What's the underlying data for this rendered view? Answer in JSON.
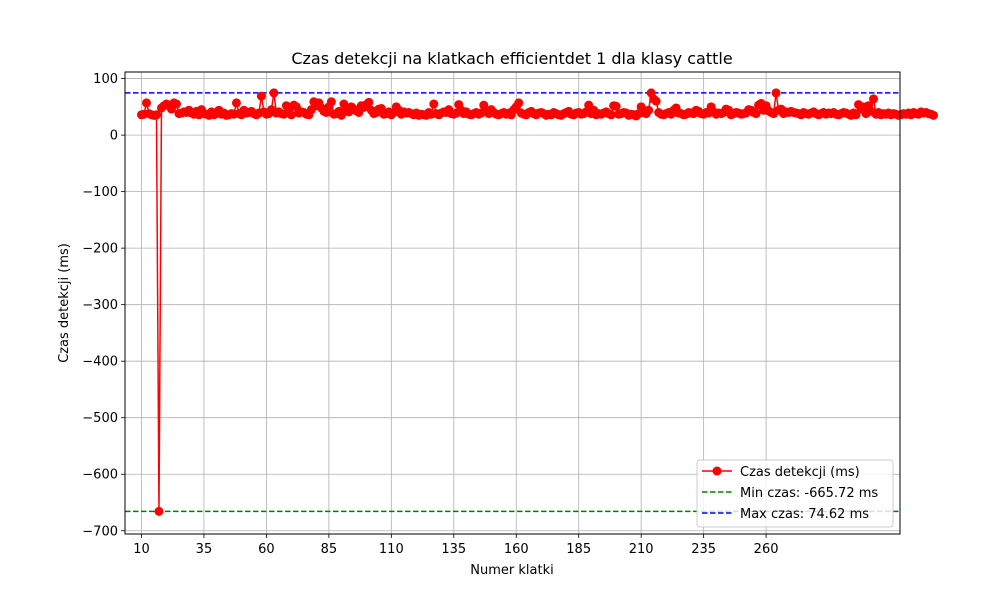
{
  "chart_data": {
    "type": "line",
    "title": "Czas detekcji na klatkach efficientdet 1 dla klasy cattle",
    "xlabel": "Numer klatki",
    "ylabel": "Czas detekcji (ms)",
    "xlim": [
      3.4,
      313.6
    ],
    "ylim": [
      -705.75,
      111.65
    ],
    "x_ticks": [
      10,
      35,
      60,
      85,
      110,
      135,
      160,
      185,
      210,
      235,
      260
    ],
    "y_ticks": [
      100,
      0,
      -100,
      -200,
      -300,
      -400,
      -500,
      -600,
      -700
    ],
    "y_tick_labels": [
      "100",
      "0",
      "−100",
      "−200",
      "−300",
      "−400",
      "−500",
      "−600",
      "−700"
    ],
    "grid": true,
    "legend_position": "lower right",
    "colors": {
      "series": "#ff0000",
      "min_line": "#008000",
      "max_line": "#0000ff",
      "grid": "#b0b0b0"
    },
    "series": [
      {
        "name": "Czas detekcji (ms)",
        "x_start": 10,
        "values": [
          36,
          37,
          57,
          38,
          36,
          35,
          36,
          -665.72,
          48,
          52,
          55,
          52,
          46,
          57,
          55,
          38,
          39,
          41,
          40,
          44,
          39,
          37,
          42,
          36,
          45,
          38,
          37,
          35,
          41,
          36,
          38,
          44,
          37,
          39,
          35,
          36,
          38,
          37,
          57,
          38,
          36,
          44,
          39,
          40,
          42,
          38,
          36,
          39,
          69,
          41,
          37,
          38,
          45,
          74.62,
          39,
          41,
          38,
          37,
          52,
          49,
          36,
          53,
          50,
          39,
          41,
          40,
          37,
          36,
          45,
          59,
          52,
          57,
          48,
          42,
          40,
          50,
          59,
          37,
          38,
          42,
          35,
          55,
          47,
          41,
          50,
          46,
          43,
          40,
          52,
          49,
          54,
          58,
          44,
          38,
          40,
          46,
          47,
          37,
          38,
          41,
          36,
          40,
          50,
          44,
          37,
          41,
          39,
          40,
          38,
          36,
          39,
          35,
          37,
          36,
          35,
          40,
          37,
          55,
          38,
          36,
          39,
          41,
          40,
          45,
          38,
          37,
          39,
          54,
          44,
          38,
          41,
          37,
          36,
          38,
          40,
          37,
          39,
          53,
          44,
          38,
          45,
          40,
          37,
          36,
          38,
          40,
          37,
          39,
          36,
          45,
          50,
          57,
          39,
          37,
          36,
          40,
          42,
          38,
          36,
          39,
          40,
          38,
          35,
          37,
          36,
          40,
          38,
          36,
          35,
          38,
          40,
          42,
          37,
          36,
          39,
          40,
          37,
          38,
          41,
          53,
          38,
          44,
          36,
          38,
          37,
          39,
          41,
          38,
          36,
          52,
          51,
          37,
          38,
          40,
          39,
          35,
          37,
          36,
          34,
          38,
          50,
          40,
          38,
          44,
          74.62,
          64,
          60,
          40,
          37,
          36,
          38,
          40,
          37,
          44,
          48,
          39,
          38,
          36,
          37,
          40,
          39,
          38,
          44,
          42,
          38,
          37,
          40,
          39,
          50,
          41,
          37,
          39,
          38,
          40,
          46,
          44,
          36,
          38,
          40,
          39,
          37,
          38,
          39,
          45,
          44,
          40,
          38,
          53,
          56,
          44,
          52,
          43,
          40,
          38,
          74.62,
          44,
          46,
          38,
          41,
          40,
          42,
          40,
          39,
          38,
          36,
          40,
          38,
          37,
          39,
          41,
          38,
          36,
          38,
          40,
          37,
          39,
          38,
          40,
          37,
          36,
          38,
          40,
          39,
          37,
          35,
          39,
          36,
          54,
          46,
          50,
          38,
          52,
          42,
          64,
          37,
          40,
          36,
          38,
          37,
          39,
          36,
          38,
          37,
          35,
          36,
          38,
          37,
          39,
          36,
          40,
          38,
          37,
          41,
          39,
          40,
          38,
          37,
          35
        ]
      }
    ],
    "reference_lines": [
      {
        "name": "Min czas: -665.72 ms",
        "y": -665.72
      },
      {
        "name": "Max czas: 74.62 ms",
        "y": 74.62
      }
    ],
    "legend": [
      "Czas detekcji (ms)",
      "Min czas: -665.72 ms",
      "Max czas: 74.62 ms"
    ]
  }
}
